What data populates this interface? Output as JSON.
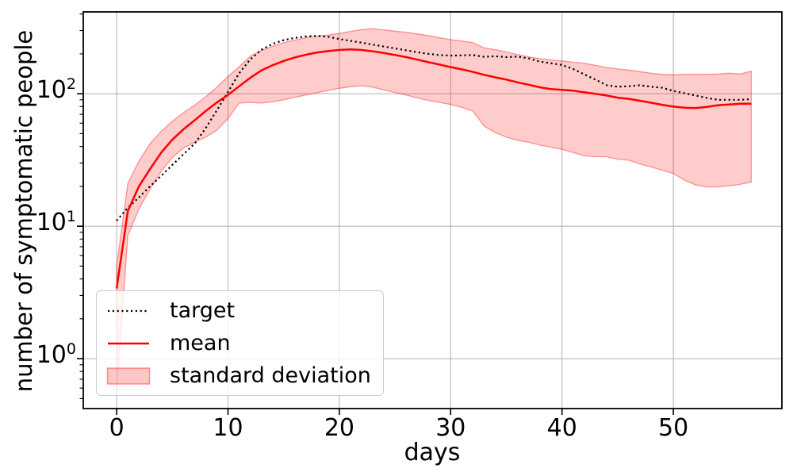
{
  "figure": {
    "background": "#ffffff",
    "accent_red": "#ff0000",
    "band_fill": "rgba(255,0,0,0.2)",
    "band_edge": "rgba(255,0,0,0.38)",
    "grid_color": "#b0b0b0",
    "spine_color": "#000000",
    "text_color": "#000000"
  },
  "chart_data": {
    "type": "line",
    "title": "",
    "xlabel": "days",
    "ylabel": "number of symptomatic people",
    "yscale": "log",
    "grid": true,
    "legend_position": "lower left",
    "xlim": [
      -3,
      59.75
    ],
    "ylim": [
      0.42,
      415
    ],
    "x_ticks": [
      0,
      10,
      20,
      30,
      40,
      50
    ],
    "y_tick_exponents": [
      0,
      1,
      2
    ],
    "legend_labels": [
      "target",
      "mean",
      "standard deviation"
    ],
    "x": [
      0,
      1,
      2,
      3,
      4,
      5,
      6,
      7,
      8,
      9,
      10,
      11,
      12,
      13,
      14,
      15,
      16,
      17,
      18,
      19,
      20,
      21,
      22,
      23,
      24,
      25,
      26,
      27,
      28,
      29,
      30,
      31,
      32,
      33,
      34,
      35,
      36,
      37,
      38,
      39,
      40,
      41,
      42,
      43,
      44,
      45,
      46,
      47,
      48,
      49,
      50,
      51,
      52,
      53,
      54,
      55,
      56,
      57
    ],
    "series": [
      {
        "name": "target",
        "style": "dotted",
        "color": "#000000",
        "values": [
          11,
          13.8,
          16.5,
          20,
          24,
          29,
          35,
          42,
          55,
          75,
          103,
          143,
          182,
          215,
          238,
          254,
          264,
          271,
          274,
          269,
          259,
          251,
          243,
          235,
          227,
          220,
          213,
          206,
          200,
          196,
          194,
          195,
          196,
          190,
          192,
          189,
          191,
          185,
          175,
          170,
          165,
          154,
          140,
          128,
          116,
          113,
          114,
          116,
          113,
          111,
          105,
          101,
          97,
          93,
          90,
          90,
          90,
          91
        ]
      },
      {
        "name": "mean",
        "style": "solid",
        "color": "#ff0000",
        "values": [
          3.4,
          13,
          20,
          27,
          36,
          45,
          54,
          63,
          74,
          86,
          98,
          114,
          132,
          150,
          164,
          177,
          188,
          197,
          205,
          210,
          214,
          216,
          214,
          209,
          203,
          196,
          189,
          181,
          173,
          166,
          159,
          153,
          146,
          139,
          133,
          128,
          122,
          117,
          112,
          108.5,
          107,
          105.5,
          102.5,
          100,
          97,
          93.5,
          91.5,
          88.5,
          85.5,
          82.5,
          80,
          78.5,
          78,
          79.5,
          82,
          83,
          84,
          84
        ]
      },
      {
        "name": "standard deviation",
        "style": "band",
        "color": "#ff0000",
        "alpha": 0.2,
        "upper": [
          5,
          21,
          31,
          42,
          52,
          62,
          72,
          82,
          95,
          112,
          135,
          160,
          192,
          212,
          228,
          243,
          254,
          265,
          272,
          278,
          285,
          295,
          305,
          310,
          304,
          297,
          291,
          283,
          275,
          265,
          256,
          250,
          243,
          222,
          215,
          207,
          198,
          190,
          184,
          180,
          177,
          173,
          170,
          164,
          158,
          154,
          151,
          147,
          143,
          140,
          139,
          140,
          140,
          140,
          141,
          143,
          141,
          148
        ],
        "lower": [
          0.55,
          8.5,
          13.5,
          19,
          26,
          33,
          39,
          43,
          47,
          53,
          65,
          85,
          86,
          85,
          87,
          90,
          94,
          98,
          102,
          106,
          110,
          113,
          115,
          112,
          107,
          102,
          98,
          93,
          89,
          86,
          83,
          79,
          74,
          57,
          51,
          47,
          44.5,
          43,
          41,
          39.5,
          38,
          36,
          34,
          33.5,
          33.5,
          32,
          31.5,
          29.5,
          28,
          26.5,
          25,
          22.3,
          20.5,
          19.8,
          19.8,
          20.2,
          20.7,
          21.5
        ]
      }
    ]
  }
}
